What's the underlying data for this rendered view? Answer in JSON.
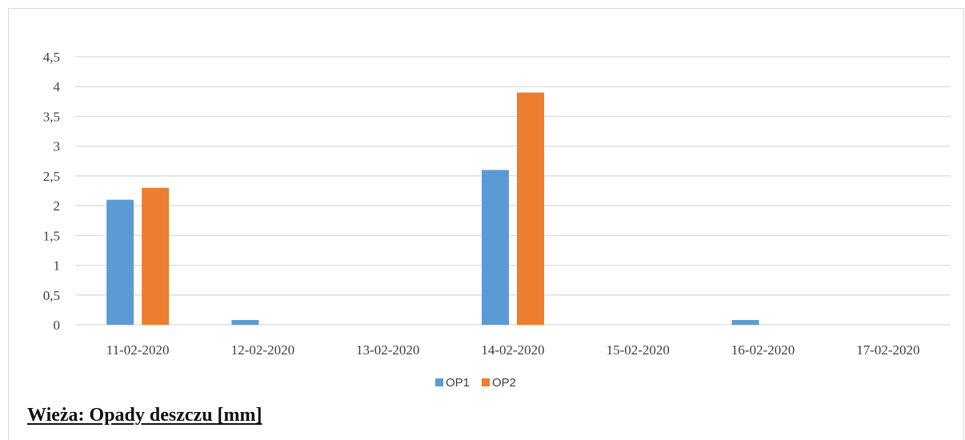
{
  "chart_data": {
    "type": "bar",
    "categories": [
      "11-02-2020",
      "12-02-2020",
      "13-02-2020",
      "14-02-2020",
      "15-02-2020",
      "16-02-2020",
      "17-02-2020"
    ],
    "series": [
      {
        "name": "OP1",
        "color": "#5b9bd5",
        "values": [
          2.1,
          0.08,
          0,
          2.6,
          0,
          0.08,
          0
        ]
      },
      {
        "name": "OP2",
        "color": "#ed7d31",
        "values": [
          2.3,
          0,
          0,
          3.9,
          0,
          0,
          0
        ]
      }
    ],
    "yticks": [
      "0",
      "0,5",
      "1",
      "1,5",
      "2",
      "2,5",
      "3",
      "3,5",
      "4",
      "4,5"
    ],
    "ylim": [
      0,
      4.5
    ],
    "grid": true,
    "legend": "bottom",
    "xlabel": "",
    "ylabel": ""
  },
  "caption": "Wieża: Opady deszczu [mm]"
}
